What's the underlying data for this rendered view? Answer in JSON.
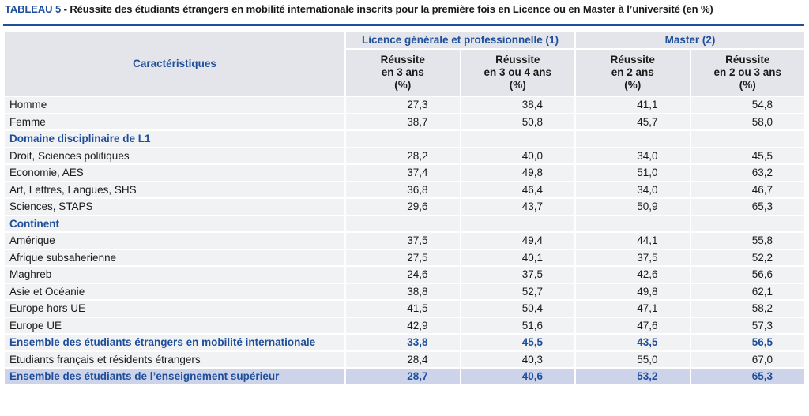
{
  "title": {
    "lead": "TABLEAU 5",
    "rest": " - Réussite des étudiants étrangers en mobilité internationale inscrits pour la première fois en Licence ou en Master à l’université (en %)"
  },
  "header": {
    "carac": "Caractéristiques",
    "groups": [
      "Licence générale et professionnelle (1)",
      "Master (2)"
    ],
    "sub": [
      [
        "Réussite",
        "en 3 ans",
        "(%)"
      ],
      [
        "Réussite",
        "en 3 ou 4 ans",
        "(%)"
      ],
      [
        "Réussite",
        "en 2 ans",
        "(%)"
      ],
      [
        "Réussite",
        "en 2 ou 3 ans",
        "(%)"
      ]
    ]
  },
  "rows": [
    {
      "type": "data",
      "label": "Homme",
      "values": [
        "27,3",
        "38,4",
        "41,1",
        "54,8"
      ]
    },
    {
      "type": "data",
      "label": "Femme",
      "values": [
        "38,7",
        "50,8",
        "45,7",
        "58,0"
      ]
    },
    {
      "type": "section",
      "label": "Domaine disciplinaire de L1",
      "values": []
    },
    {
      "type": "data",
      "label": "Droit, Sciences politiques",
      "values": [
        "28,2",
        "40,0",
        "34,0",
        "45,5"
      ]
    },
    {
      "type": "data",
      "label": "Economie, AES",
      "values": [
        "37,4",
        "49,8",
        "51,0",
        "63,2"
      ]
    },
    {
      "type": "data",
      "label": "Art, Lettres, Langues, SHS",
      "values": [
        "36,8",
        "46,4",
        "34,0",
        "46,7"
      ]
    },
    {
      "type": "data",
      "label": "Sciences, STAPS",
      "values": [
        "29,6",
        "43,7",
        "50,9",
        "65,3"
      ]
    },
    {
      "type": "section",
      "label": "Continent",
      "values": []
    },
    {
      "type": "data",
      "label": "Amérique",
      "values": [
        "37,5",
        "49,4",
        "44,1",
        "55,8"
      ]
    },
    {
      "type": "data",
      "label": "Afrique subsaherienne",
      "values": [
        "27,5",
        "40,1",
        "37,5",
        "52,2"
      ]
    },
    {
      "type": "data",
      "label": "Maghreb",
      "values": [
        "24,6",
        "37,5",
        "42,6",
        "56,6"
      ]
    },
    {
      "type": "data",
      "label": "Asie et Océanie",
      "values": [
        "38,8",
        "52,7",
        "49,8",
        "62,1"
      ]
    },
    {
      "type": "data",
      "label": "Europe hors UE",
      "values": [
        "41,5",
        "50,4",
        "47,1",
        "58,2"
      ]
    },
    {
      "type": "data",
      "label": "Europe UE",
      "values": [
        "42,9",
        "51,6",
        "47,6",
        "57,3"
      ]
    },
    {
      "type": "total",
      "label": "Ensemble des étudiants étrangers en mobilité internationale",
      "values": [
        "33,8",
        "45,5",
        "43,5",
        "56,5"
      ]
    },
    {
      "type": "data",
      "label": "Etudiants français et résidents étrangers",
      "values": [
        "28,4",
        "40,3",
        "55,0",
        "67,0"
      ]
    },
    {
      "type": "grand",
      "label": "Ensemble des étudiants de l’enseignement supérieur",
      "values": [
        "28,7",
        "40,6",
        "53,2",
        "65,3"
      ]
    }
  ]
}
